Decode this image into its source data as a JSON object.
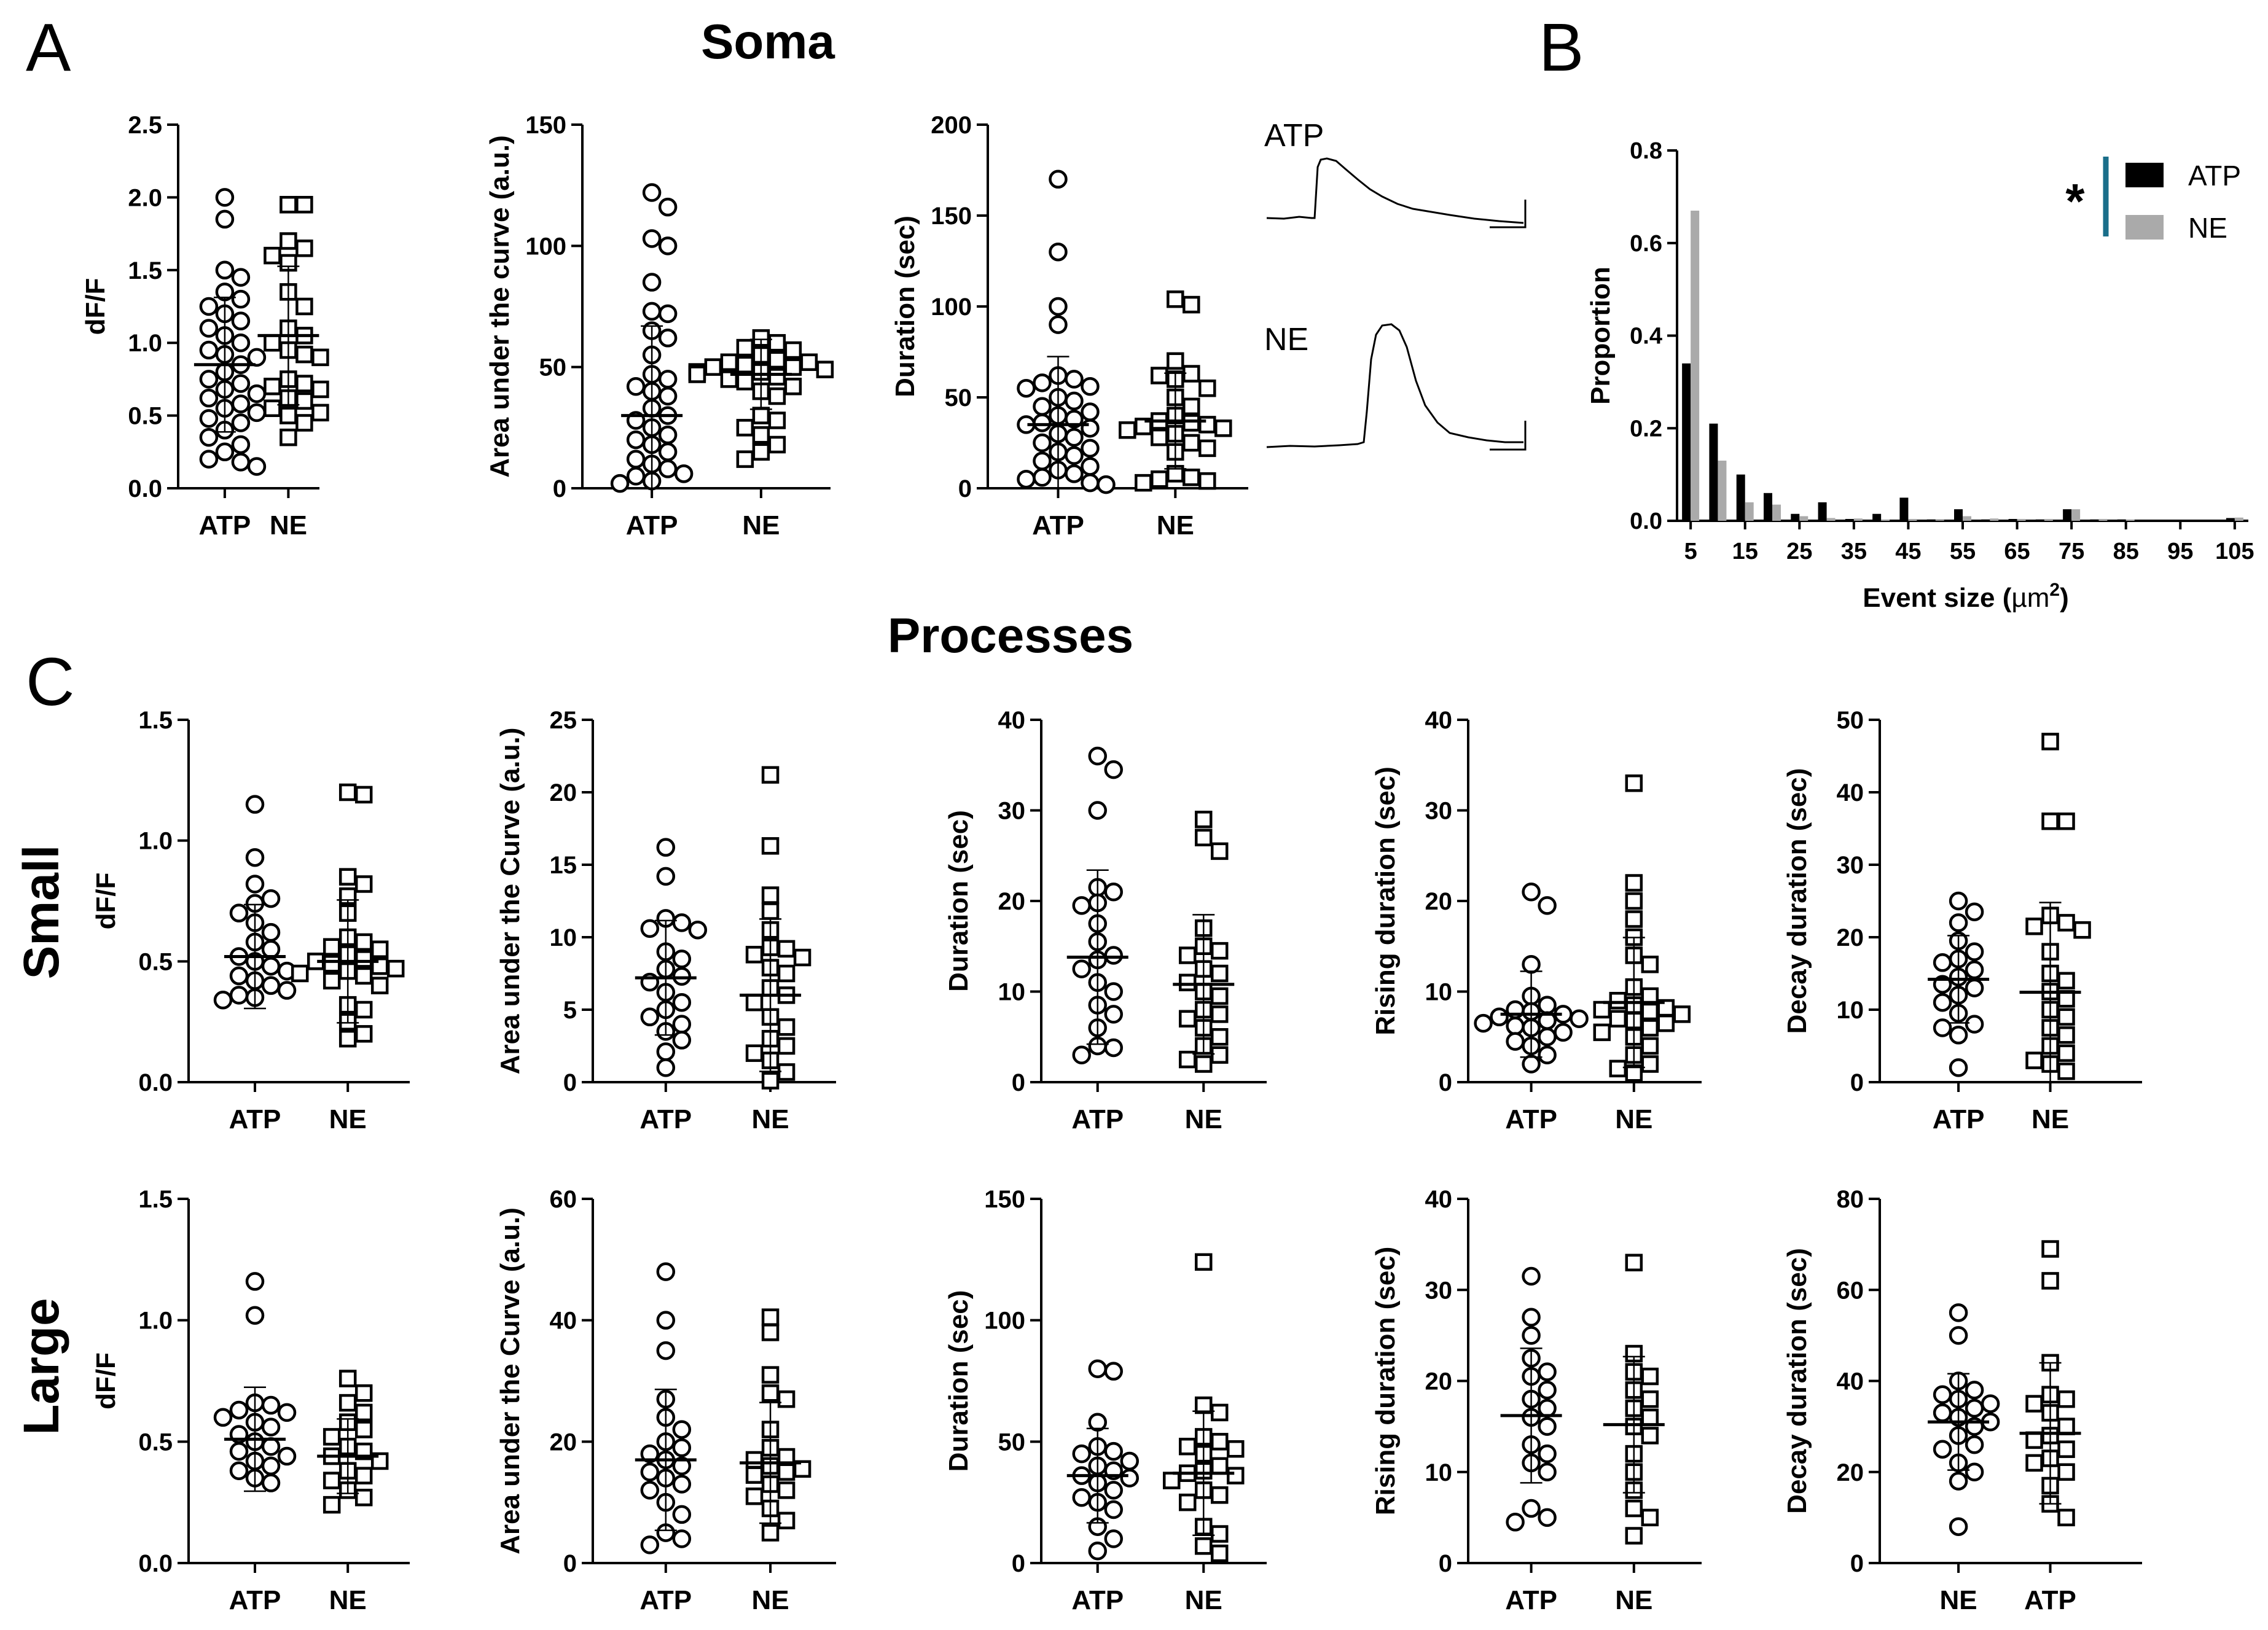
{
  "labels": {
    "A": "A",
    "B": "B",
    "C": "C"
  },
  "headings": {
    "soma": "Soma",
    "processes": "Processes",
    "small": "Small",
    "large": "Large"
  },
  "traces": {
    "atp": "ATP",
    "ne": "NE"
  },
  "colors": {
    "black": "#000000",
    "gray": "#aaaaaa",
    "sig_bar": "#1a6e8a"
  },
  "chart_data": [
    {
      "id": "soma_dff",
      "type": "scatter",
      "ylabel": "dF/F",
      "ylim": [
        0,
        2.5
      ],
      "yticks": [
        "0.0",
        "0.5",
        "1.0",
        "1.5",
        "2.0",
        "2.5"
      ],
      "categories": [
        "ATP",
        "NE"
      ],
      "groups": [
        {
          "name": "ATP",
          "marker": "circle",
          "mean": 0.85,
          "values": [
            2.0,
            1.85,
            1.5,
            1.45,
            1.35,
            1.3,
            1.25,
            1.2,
            1.15,
            1.1,
            1.05,
            1.0,
            0.95,
            0.92,
            0.9,
            0.85,
            0.8,
            0.75,
            0.72,
            0.68,
            0.65,
            0.62,
            0.58,
            0.55,
            0.52,
            0.48,
            0.45,
            0.4,
            0.35,
            0.3,
            0.25,
            0.2,
            0.18,
            0.15
          ]
        },
        {
          "name": "NE",
          "marker": "square",
          "mean": 1.05,
          "values": [
            1.95,
            1.95,
            1.7,
            1.65,
            1.6,
            1.55,
            1.35,
            1.25,
            1.1,
            1.05,
            1.0,
            0.95,
            0.92,
            0.9,
            0.75,
            0.72,
            0.7,
            0.68,
            0.62,
            0.6,
            0.55,
            0.52,
            0.5,
            0.45,
            0.35
          ]
        }
      ]
    },
    {
      "id": "soma_auc",
      "type": "scatter",
      "ylabel": "Area under the curve (a.u.)",
      "ylim": [
        0,
        150
      ],
      "yticks": [
        "0",
        "50",
        "100",
        "150"
      ],
      "categories": [
        "ATP",
        "NE"
      ],
      "groups": [
        {
          "name": "ATP",
          "marker": "circle",
          "mean": 30,
          "values": [
            122,
            116,
            103,
            100,
            85,
            73,
            72,
            65,
            62,
            55,
            47,
            45,
            42,
            40,
            38,
            33,
            30,
            28,
            25,
            22,
            20,
            18,
            15,
            12,
            10,
            8,
            6,
            5,
            3,
            2
          ]
        },
        {
          "name": "NE",
          "marker": "square",
          "mean": 47,
          "values": [
            62,
            60,
            58,
            57,
            55,
            53,
            52,
            52,
            51,
            50,
            50,
            49,
            48,
            48,
            47,
            46,
            45,
            44,
            42,
            40,
            38,
            30,
            28,
            25,
            22,
            18,
            15,
            12
          ]
        }
      ]
    },
    {
      "id": "soma_dur",
      "type": "scatter",
      "ylabel": "Duration (sec)",
      "ylim": [
        0,
        200
      ],
      "yticks": [
        "0",
        "50",
        "100",
        "150",
        "200"
      ],
      "categories": [
        "ATP",
        "NE"
      ],
      "groups": [
        {
          "name": "ATP",
          "marker": "circle",
          "mean": 35,
          "values": [
            170,
            130,
            100,
            90,
            62,
            60,
            58,
            56,
            55,
            50,
            48,
            45,
            42,
            40,
            38,
            36,
            35,
            33,
            30,
            28,
            25,
            22,
            20,
            18,
            15,
            12,
            10,
            8,
            6,
            5,
            3,
            2
          ]
        },
        {
          "name": "NE",
          "marker": "square",
          "mean": 37,
          "values": [
            104,
            101,
            70,
            63,
            62,
            60,
            55,
            50,
            45,
            40,
            37,
            36,
            35,
            34,
            33,
            32,
            30,
            28,
            25,
            22,
            20,
            8,
            6,
            5,
            4,
            3
          ]
        }
      ]
    },
    {
      "id": "event_size",
      "type": "bar",
      "title": "",
      "xlabel": "Event size (µm²)",
      "xlabel_main": "Event size (",
      "xlabel_mu": "µm",
      "xlabel_sup": "2",
      "xlabel_end": ")",
      "ylabel": "Proportion",
      "ylim": [
        0,
        0.8
      ],
      "yticks": [
        "0.0",
        "0.2",
        "0.4",
        "0.6",
        "0.8"
      ],
      "categories": [
        "5",
        "15",
        "25",
        "35",
        "45",
        "55",
        "65",
        "75",
        "85",
        "95",
        "105"
      ],
      "x": [
        5,
        10,
        15,
        20,
        25,
        30,
        35,
        40,
        45,
        50,
        55,
        60,
        65,
        70,
        75,
        80,
        85,
        90,
        95,
        100,
        105
      ],
      "series": [
        {
          "name": "ATP",
          "values": [
            0.34,
            0.21,
            0.1,
            0.06,
            0.015,
            0.04,
            0.004,
            0.015,
            0.05,
            0.003,
            0.025,
            0.003,
            0.004,
            0.003,
            0.025,
            0.003,
            0.003,
            0.0,
            0.0,
            0.0,
            0.006
          ]
        },
        {
          "name": "NE",
          "values": [
            0.67,
            0.13,
            0.04,
            0.035,
            0.01,
            0.006,
            0.005,
            0.003,
            0.004,
            0.002,
            0.01,
            0.005,
            0.004,
            0.004,
            0.025,
            0.004,
            0.003,
            0.0,
            0.0,
            0.0,
            0.007
          ]
        }
      ],
      "legend": [
        "ATP",
        "NE"
      ],
      "significance": "*",
      "legend_position": "top-right"
    },
    {
      "id": "small_dff",
      "type": "scatter",
      "row": "Small",
      "ylabel": "dF/F",
      "ylim": [
        0,
        1.5
      ],
      "yticks": [
        "0.0",
        "0.5",
        "1.0",
        "1.5"
      ],
      "categories": [
        "ATP",
        "NE"
      ],
      "groups": [
        {
          "name": "ATP",
          "marker": "circle",
          "mean": 0.52,
          "values": [
            1.15,
            0.93,
            0.82,
            0.76,
            0.74,
            0.7,
            0.66,
            0.62,
            0.58,
            0.55,
            0.52,
            0.5,
            0.48,
            0.46,
            0.44,
            0.42,
            0.4,
            0.38,
            0.36,
            0.35,
            0.34
          ]
        },
        {
          "name": "NE",
          "marker": "square",
          "mean": 0.5,
          "values": [
            1.2,
            1.19,
            0.85,
            0.82,
            0.77,
            0.7,
            0.6,
            0.58,
            0.56,
            0.55,
            0.53,
            0.51,
            0.5,
            0.49,
            0.48,
            0.47,
            0.46,
            0.45,
            0.44,
            0.42,
            0.4,
            0.32,
            0.3,
            0.25,
            0.2,
            0.18
          ]
        }
      ]
    },
    {
      "id": "small_auc",
      "type": "scatter",
      "row": "Small",
      "ylabel": "Area under the Curve (a.u.)",
      "ylim": [
        0,
        25
      ],
      "yticks": [
        "0",
        "5",
        "10",
        "15",
        "20",
        "25"
      ],
      "categories": [
        "ATP",
        "NE"
      ],
      "groups": [
        {
          "name": "ATP",
          "marker": "circle",
          "mean": 7.2,
          "values": [
            16.2,
            14.2,
            11.3,
            11.0,
            10.6,
            10.5,
            9.0,
            8.5,
            7.8,
            7.3,
            6.9,
            6.2,
            5.5,
            5.0,
            4.5,
            4.0,
            3.5,
            2.9,
            2.1,
            1.0
          ]
        },
        {
          "name": "NE",
          "marker": "square",
          "mean": 6.0,
          "values": [
            21.2,
            16.3,
            12.9,
            11.8,
            10.5,
            9.3,
            9.2,
            8.8,
            8.6,
            7.9,
            7.5,
            6.5,
            6.0,
            5.5,
            4.5,
            3.8,
            3.0,
            2.5,
            2.0,
            1.5,
            0.7,
            0.1
          ]
        }
      ]
    },
    {
      "id": "small_dur",
      "type": "scatter",
      "row": "Small",
      "ylabel": "Duration (sec)",
      "ylim": [
        0,
        40
      ],
      "yticks": [
        "0",
        "10",
        "20",
        "30",
        "40"
      ],
      "categories": [
        "ATP",
        "NE"
      ],
      "groups": [
        {
          "name": "ATP",
          "marker": "circle",
          "mean": 13.8,
          "values": [
            36,
            34.5,
            30,
            21.5,
            21,
            19.8,
            19.5,
            17.5,
            15.5,
            14,
            13.5,
            12.5,
            11,
            10,
            8.5,
            7.5,
            6,
            4,
            3.8,
            3
          ]
        },
        {
          "name": "NE",
          "marker": "square",
          "mean": 10.8,
          "values": [
            29,
            27,
            25.5,
            17,
            15,
            14.5,
            14,
            12.5,
            12,
            11,
            10,
            9.5,
            8,
            7.5,
            7,
            6,
            5,
            4,
            3,
            2.5,
            2
          ]
        }
      ]
    },
    {
      "id": "small_rise",
      "type": "scatter",
      "row": "Small",
      "ylabel": "Rising duration (sec)",
      "ylim": [
        0,
        40
      ],
      "yticks": [
        "0",
        "10",
        "20",
        "30",
        "40"
      ],
      "categories": [
        "ATP",
        "NE"
      ],
      "groups": [
        {
          "name": "ATP",
          "marker": "circle",
          "mean": 7.5,
          "values": [
            21,
            19.5,
            13,
            9.5,
            8.5,
            8,
            7.8,
            7.5,
            7.2,
            7,
            6.8,
            6.5,
            6.2,
            6,
            5.5,
            5,
            4.5,
            4,
            3,
            2
          ]
        },
        {
          "name": "NE",
          "marker": "square",
          "mean": 8.8,
          "values": [
            33,
            22,
            20,
            18,
            16,
            14,
            13,
            10.5,
            9.5,
            9,
            8.5,
            8.2,
            8,
            7.8,
            7.5,
            7,
            6.8,
            6.5,
            6,
            5.5,
            5,
            4,
            3,
            2,
            1.5,
            1
          ]
        }
      ]
    },
    {
      "id": "small_decay",
      "type": "scatter",
      "row": "Small",
      "ylabel": "Decay duration (sec)",
      "ylim": [
        0,
        50
      ],
      "yticks": [
        "0",
        "10",
        "20",
        "30",
        "40",
        "50"
      ],
      "categories": [
        "ATP",
        "NE"
      ],
      "groups": [
        {
          "name": "ATP",
          "marker": "circle",
          "mean": 14.2,
          "values": [
            25,
            23.5,
            22,
            19.5,
            18,
            17,
            16.5,
            15.5,
            14.5,
            13.5,
            13,
            12,
            11,
            9.5,
            8,
            7.5,
            6.5,
            2
          ]
        },
        {
          "name": "NE",
          "marker": "square",
          "mean": 12.4,
          "values": [
            47,
            36,
            36,
            23,
            22,
            21.5,
            21,
            18,
            15,
            14,
            12.5,
            11.5,
            10,
            9,
            7.5,
            6.5,
            5,
            4,
            3,
            2.5,
            1.5
          ]
        }
      ]
    },
    {
      "id": "large_dff",
      "type": "scatter",
      "row": "Large",
      "ylabel": "dF/F",
      "ylim": [
        0,
        1.5
      ],
      "yticks": [
        "0.0",
        "0.5",
        "1.0",
        "1.5"
      ],
      "categories": [
        "ATP",
        "NE"
      ],
      "groups": [
        {
          "name": "ATP",
          "marker": "circle",
          "mean": 0.51,
          "values": [
            1.16,
            1.02,
            0.66,
            0.65,
            0.63,
            0.62,
            0.6,
            0.58,
            0.56,
            0.53,
            0.5,
            0.48,
            0.46,
            0.44,
            0.42,
            0.4,
            0.38,
            0.35,
            0.33
          ]
        },
        {
          "name": "NE",
          "marker": "square",
          "mean": 0.44,
          "values": [
            0.76,
            0.7,
            0.66,
            0.62,
            0.58,
            0.55,
            0.52,
            0.48,
            0.46,
            0.44,
            0.42,
            0.38,
            0.36,
            0.34,
            0.3,
            0.27,
            0.24
          ]
        }
      ]
    },
    {
      "id": "large_auc",
      "type": "scatter",
      "row": "Large",
      "ylabel": "Area under the Curve (a.u.)",
      "ylim": [
        0,
        60
      ],
      "yticks": [
        "0",
        "20",
        "40",
        "60"
      ],
      "categories": [
        "ATP",
        "NE"
      ],
      "groups": [
        {
          "name": "ATP",
          "marker": "circle",
          "mean": 17,
          "values": [
            48,
            40,
            35,
            27,
            24,
            22,
            20,
            19,
            18,
            17,
            16,
            15,
            14,
            13,
            12,
            10,
            8,
            5,
            4,
            3
          ]
        },
        {
          "name": "NE",
          "marker": "square",
          "mean": 16.5,
          "values": [
            40.5,
            38,
            31,
            28,
            27,
            22,
            19,
            17.5,
            17,
            16,
            15.5,
            15,
            14.5,
            13,
            12,
            11,
            9,
            7,
            5
          ]
        }
      ]
    },
    {
      "id": "large_dur",
      "type": "scatter",
      "row": "Large",
      "ylabel": "Duration (sec)",
      "ylim": [
        0,
        150
      ],
      "yticks": [
        "0",
        "50",
        "100",
        "150"
      ],
      "categories": [
        "ATP",
        "NE"
      ],
      "groups": [
        {
          "name": "ATP",
          "marker": "circle",
          "mean": 36,
          "values": [
            80,
            79,
            58,
            48,
            46,
            45,
            42,
            40,
            38,
            36,
            35,
            33,
            30,
            27,
            25,
            22,
            15,
            10,
            5
          ]
        },
        {
          "name": "NE",
          "marker": "square",
          "mean": 37,
          "values": [
            124,
            65,
            62,
            52,
            50,
            48,
            47,
            45,
            40,
            38,
            37,
            36,
            34,
            30,
            28,
            25,
            15,
            12,
            7,
            4
          ]
        }
      ]
    },
    {
      "id": "large_rise",
      "type": "scatter",
      "row": "Large",
      "ylabel": "Rising duration (sec)",
      "ylim": [
        0,
        40
      ],
      "yticks": [
        "0",
        "10",
        "20",
        "30",
        "40"
      ],
      "categories": [
        "ATP",
        "NE"
      ],
      "groups": [
        {
          "name": "ATP",
          "marker": "circle",
          "mean": 16.2,
          "values": [
            31.5,
            27,
            25,
            22.5,
            21,
            20.5,
            19,
            18,
            17,
            16,
            15,
            13,
            12,
            11,
            10,
            6,
            5,
            4.5
          ]
        },
        {
          "name": "NE",
          "marker": "square",
          "mean": 15.2,
          "values": [
            33,
            23,
            21,
            20.5,
            19,
            18,
            17,
            16,
            15,
            14,
            12,
            10,
            8,
            6,
            5,
            3
          ]
        }
      ]
    },
    {
      "id": "large_decay",
      "type": "scatter",
      "row": "Large",
      "ylabel": "Decay duration (sec)",
      "ylim": [
        0,
        80
      ],
      "yticks": [
        "0",
        "20",
        "40",
        "60",
        "80"
      ],
      "categories": [
        "NE",
        "ATP"
      ],
      "groups": [
        {
          "name": "NE",
          "marker": "circle",
          "mean": 31,
          "values": [
            55,
            50,
            40,
            38,
            37,
            36,
            35,
            34,
            33,
            32,
            31,
            30,
            28,
            26,
            25,
            22,
            20,
            18,
            8
          ]
        },
        {
          "name": "ATP",
          "marker": "square",
          "mean": 28.5,
          "values": [
            69,
            62,
            44,
            37,
            36,
            35,
            33,
            30,
            28,
            27,
            25,
            23,
            22,
            20,
            17,
            13,
            10
          ]
        }
      ]
    }
  ]
}
